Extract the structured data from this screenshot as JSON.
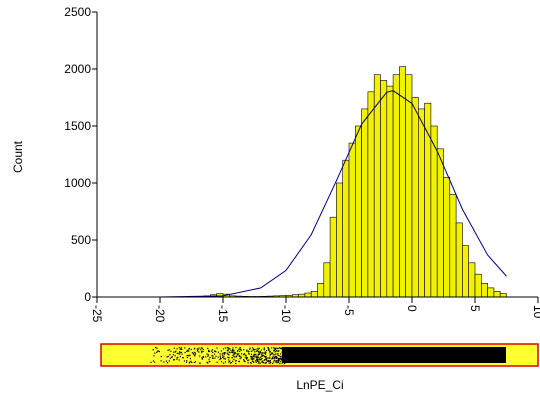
{
  "chart_data": {
    "type": "histogram",
    "x_label": "LnPE_Ci",
    "y_label": "Count",
    "bins": [
      -17,
      -16.5,
      -16,
      -15.5,
      -15,
      -14.5,
      -14,
      -13.5,
      -13,
      -12.5,
      -12,
      -11.5,
      -11,
      -10.5,
      -10,
      -9.5,
      -9,
      -8.5,
      -8,
      -7.5,
      -7,
      -6.5,
      -6,
      -5.5,
      -5,
      -4.5,
      -4,
      -3.5,
      -3,
      -2.5,
      -2,
      -1.5,
      -1,
      -0.5,
      0,
      0.5,
      1,
      1.5,
      2,
      2.5,
      3,
      3.5,
      4,
      4.5,
      5,
      5.5,
      6,
      6.5,
      7,
      7.5
    ],
    "values": [
      5,
      10,
      20,
      30,
      25,
      10,
      8,
      6,
      5,
      5,
      6,
      8,
      10,
      12,
      15,
      20,
      25,
      35,
      50,
      120,
      300,
      700,
      1000,
      1200,
      1350,
      1500,
      1650,
      1800,
      1950,
      1900,
      1850,
      1950,
      2020,
      1950,
      1750,
      1650,
      1700,
      1500,
      1300,
      1050,
      900,
      650,
      450,
      300,
      200,
      120,
      80,
      50,
      30
    ],
    "color": "#f2f200",
    "fit_curve": {
      "color": "#000080",
      "x": [
        -25,
        -20,
        -15,
        -12,
        -10,
        -8,
        -6,
        -4,
        -2,
        -1.5,
        0,
        2,
        4,
        6,
        7.5
      ],
      "values": [
        0,
        0,
        10,
        80,
        233,
        546,
        1019,
        1516,
        1797,
        1810,
        1698,
        1280,
        770,
        369,
        182
      ]
    },
    "xlim": [
      -25,
      10
    ],
    "ylim": [
      0,
      2500
    ],
    "xticks": [
      -25,
      -20,
      -15,
      -10,
      -5,
      0,
      5,
      10
    ],
    "yticks": [
      0,
      500,
      1000,
      1500,
      2000,
      2500
    ]
  }
}
